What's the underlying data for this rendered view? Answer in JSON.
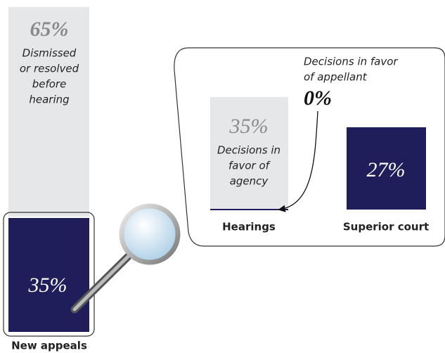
{
  "new_appeals": {
    "label": "New appeals",
    "dismissed": {
      "value": "65%",
      "text": [
        "Dismissed",
        "or resolved",
        "before",
        "hearing"
      ]
    },
    "appealed": {
      "value": "35%"
    }
  },
  "hearings": {
    "label": "Hearings",
    "agency": {
      "value": "35%",
      "text": [
        "Decisions in",
        "favor of",
        "agency"
      ]
    },
    "appellant": {
      "value": "0%",
      "text": [
        "Decisions in favor",
        "of appellant"
      ]
    }
  },
  "superior_court": {
    "label": "Superior court",
    "value": "27%"
  }
}
